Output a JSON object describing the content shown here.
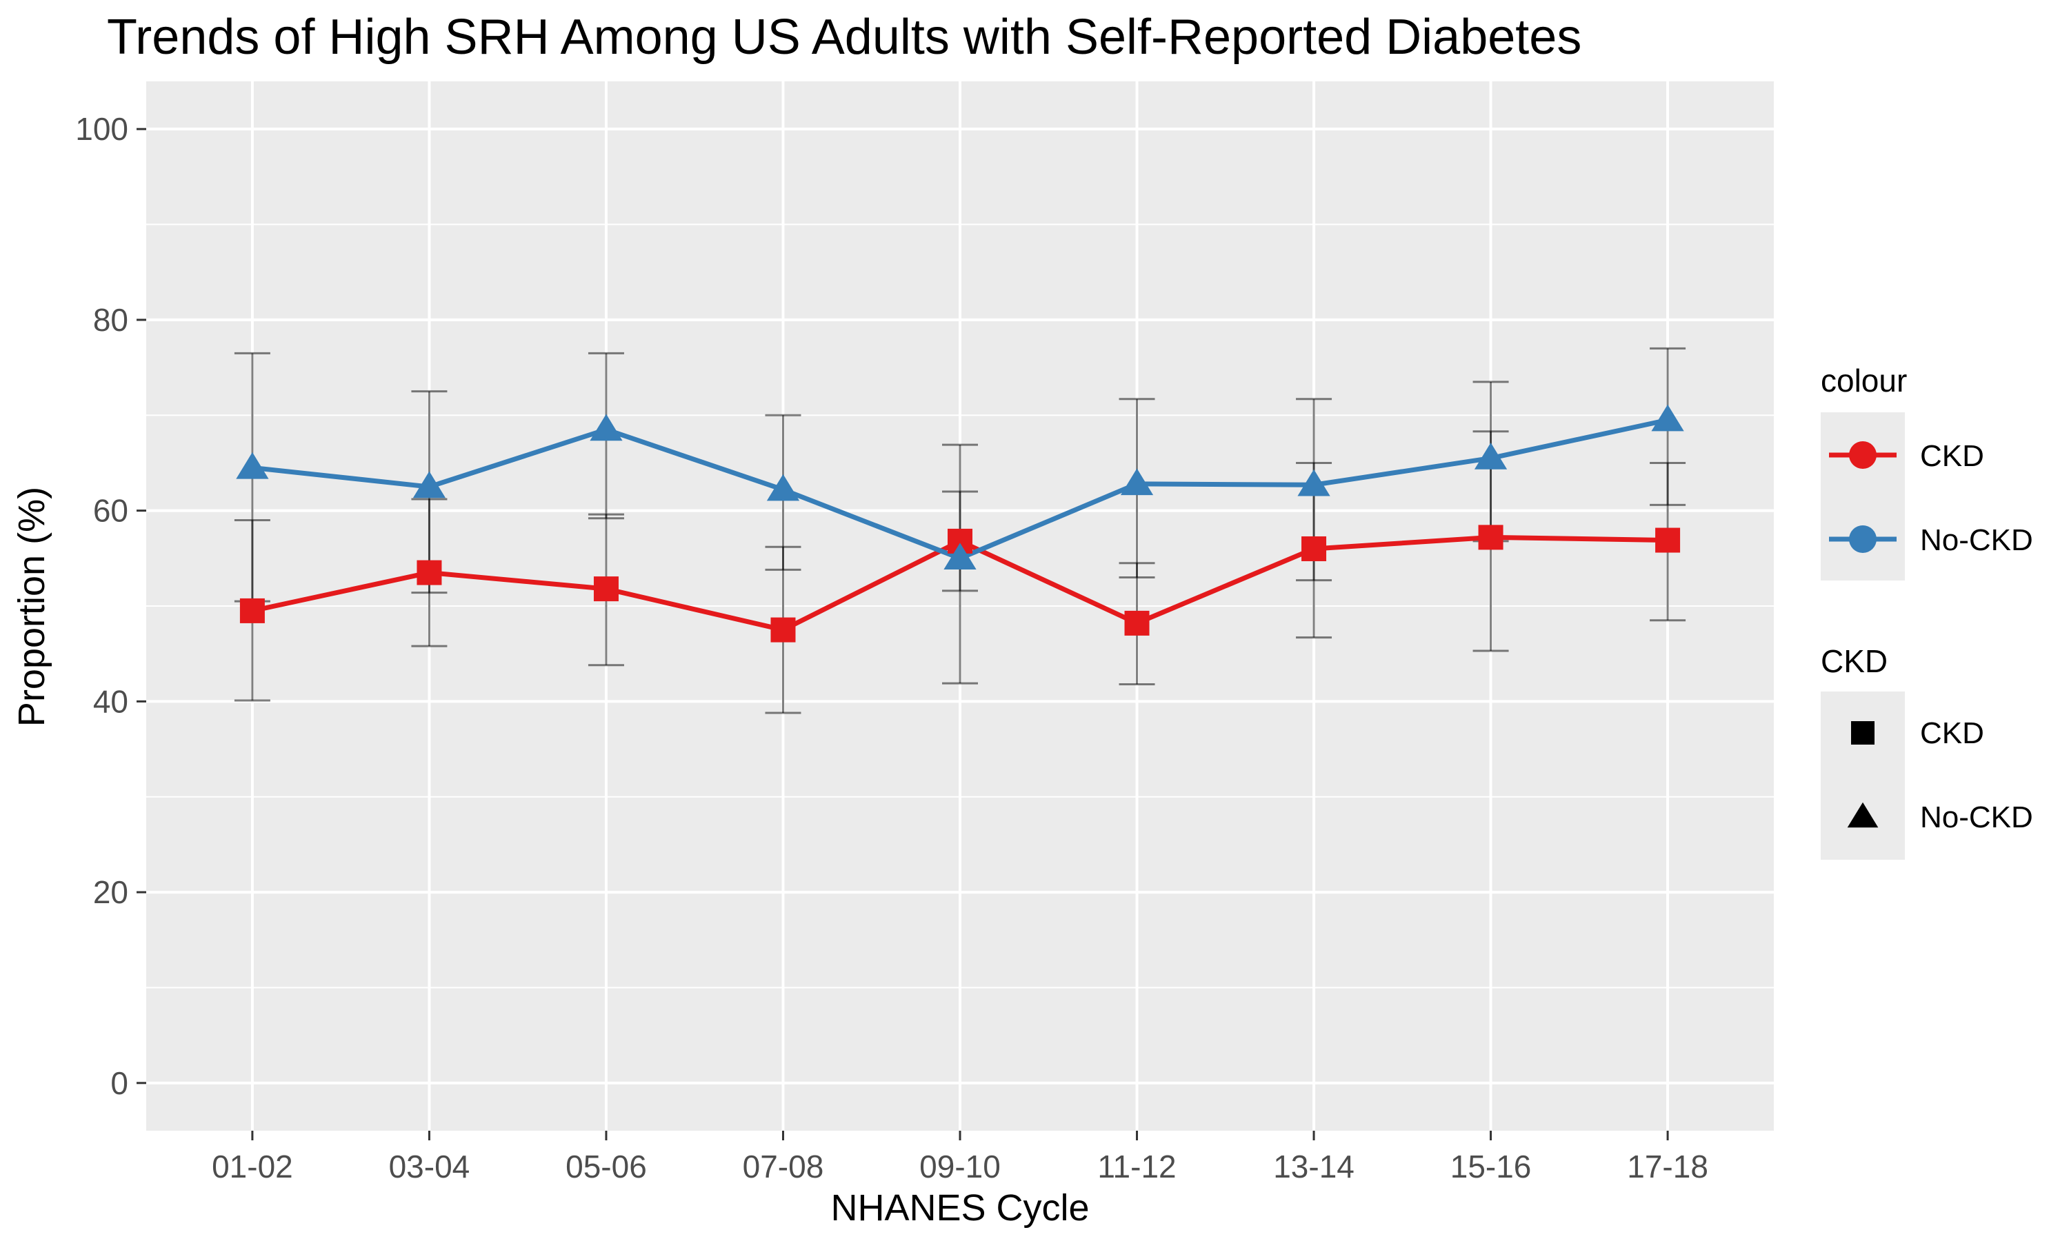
{
  "chart_data": {
    "type": "line",
    "title": "Trends of High SRH Among US Adults with Self-Reported Diabetes",
    "xlabel": "NHANES Cycle",
    "ylabel": "Proportion (%)",
    "ylim": [
      -5,
      105
    ],
    "yticks": [
      "0",
      "20",
      "40",
      "60",
      "80",
      "100"
    ],
    "categories": [
      "01-02",
      "03-04",
      "05-06",
      "07-08",
      "09-10",
      "11-12",
      "13-14",
      "15-16",
      "17-18"
    ],
    "grid": true,
    "legend_position": "right",
    "series": [
      {
        "name": "CKD",
        "color": "#e41a1c",
        "shape": "square",
        "values": [
          49.5,
          53.5,
          51.8,
          47.5,
          56.8,
          48.2,
          56.0,
          57.2,
          56.9
        ],
        "lower": [
          40.1,
          45.8,
          43.8,
          38.8,
          41.9,
          41.8,
          46.7,
          45.3,
          48.5
        ],
        "upper": [
          59.0,
          61.2,
          59.6,
          56.2,
          62.0,
          54.5,
          65.0,
          68.3,
          65.0
        ]
      },
      {
        "name": "No-CKD",
        "color": "#377eb8",
        "shape": "triangle",
        "values": [
          64.5,
          62.5,
          68.5,
          62.2,
          55.0,
          62.8,
          62.7,
          65.5,
          69.5
        ],
        "lower": [
          50.5,
          51.4,
          59.2,
          53.8,
          51.6,
          53.0,
          52.7,
          56.8,
          60.6
        ],
        "upper": [
          76.5,
          72.5,
          76.5,
          70.0,
          66.9,
          71.7,
          71.7,
          73.5,
          77.0
        ]
      }
    ]
  },
  "legend": {
    "colour_title": "colour",
    "colour_items": [
      {
        "label": "CKD",
        "color": "#e41a1c"
      },
      {
        "label": "No-CKD",
        "color": "#377eb8"
      }
    ],
    "shape_title": "CKD",
    "shape_items": [
      {
        "label": "CKD",
        "shape": "square"
      },
      {
        "label": "No-CKD",
        "shape": "triangle"
      }
    ]
  }
}
